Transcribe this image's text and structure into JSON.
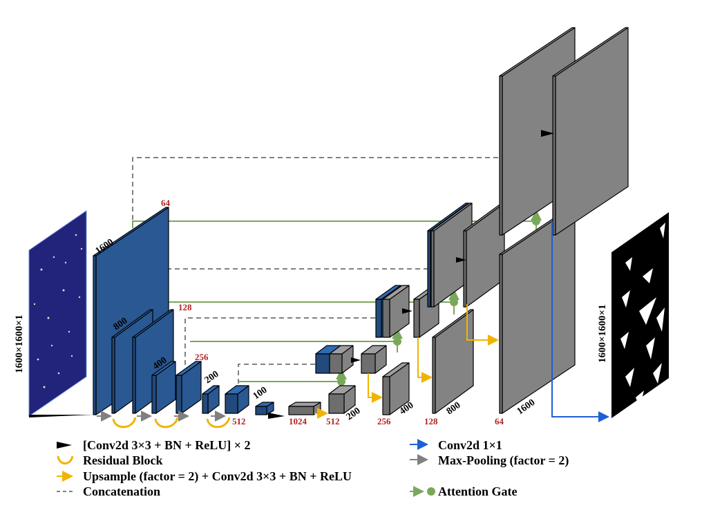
{
  "colors": {
    "encoder_block": "#2b5d9b",
    "encoder_side": "#1e4a80",
    "decoder_block": "#8a8a8a",
    "conv1x1_arrow": "#1f5fd6",
    "maxpool_arrow": "#808080",
    "upsample_arrow": "#f0b400",
    "concat_line": "#808080",
    "attention": "#7aa85a",
    "residual": "#f0b400",
    "channel_label": "#b22222"
  },
  "input": {
    "size_label": "1600×1600×1"
  },
  "output": {
    "size_label": "1600×1600×1"
  },
  "encoder": [
    {
      "resolution": "1600",
      "channels": "64"
    },
    {
      "resolution": "800",
      "channels": "128"
    },
    {
      "resolution": "400",
      "channels": "256"
    },
    {
      "resolution": "200",
      "channels": "512"
    },
    {
      "resolution": "100",
      "channels": "1024"
    }
  ],
  "decoder": [
    {
      "resolution": "200",
      "channels": "512"
    },
    {
      "resolution": "400",
      "channels": "256"
    },
    {
      "resolution": "800",
      "channels": "128"
    },
    {
      "resolution": "1600",
      "channels": "64"
    }
  ],
  "legend": {
    "conv": "[Conv2d 3×3 + BN + ReLU] × 2",
    "residual": "Residual Block",
    "upsample": "Upsample (factor = 2) + Conv2d 3×3 + BN + ReLU",
    "concat": "Concatenation",
    "conv1x1": "Conv2d 1×1",
    "maxpool": "Max-Pooling (factor = 2)",
    "attention": "Attention Gate"
  }
}
